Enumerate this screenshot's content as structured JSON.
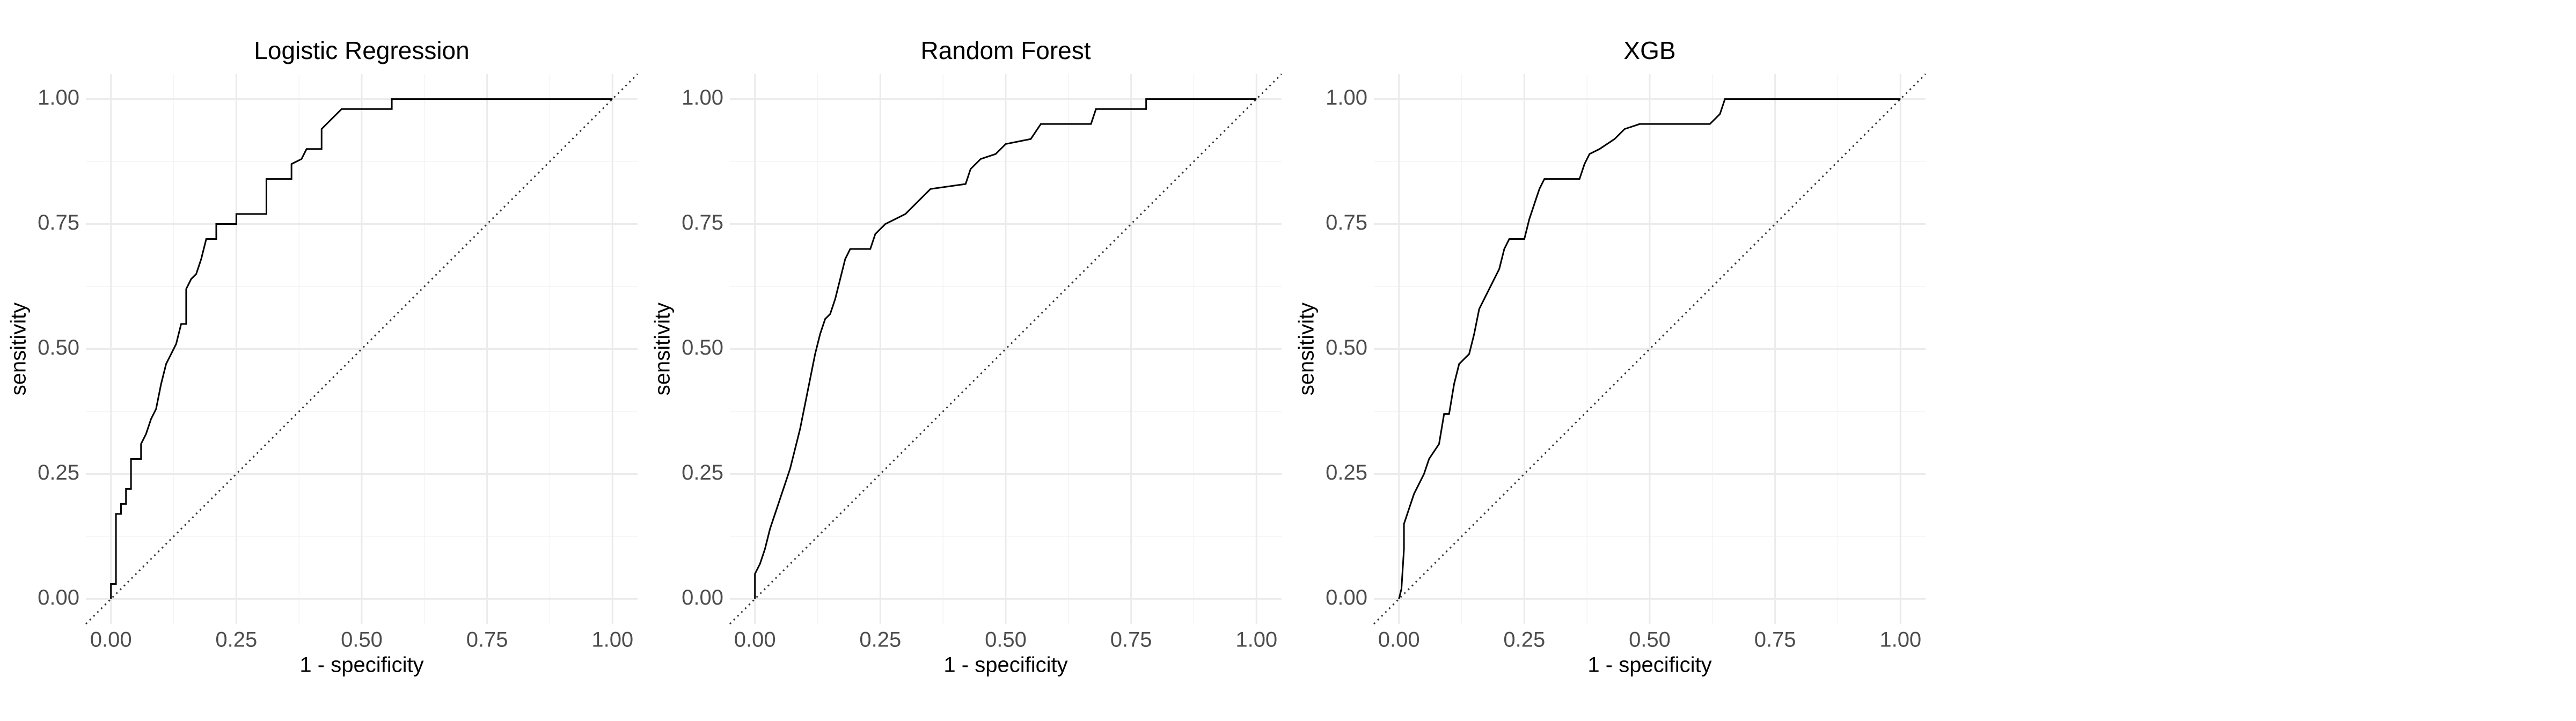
{
  "chart_data": [
    {
      "type": "line",
      "title": "Logistic Regression",
      "x_label": "1 - specificity",
      "y_label": "sensitivity",
      "color": "#000000",
      "grid": true,
      "xlim": [
        -0.05,
        1.05
      ],
      "ylim": [
        -0.05,
        1.05
      ],
      "xticks": [
        {
          "value": 0,
          "label": "0.00"
        },
        {
          "value": 0.25,
          "label": "0.25"
        },
        {
          "value": 0.5,
          "label": "0.50"
        },
        {
          "value": 0.75,
          "label": "0.75"
        },
        {
          "value": 1,
          "label": "1.00"
        }
      ],
      "yticks": [
        {
          "value": 0,
          "label": "0.00"
        },
        {
          "value": 0.25,
          "label": "0.25"
        },
        {
          "value": 0.5,
          "label": "0.50"
        },
        {
          "value": 0.75,
          "label": "0.75"
        },
        {
          "value": 1,
          "label": "1.00"
        }
      ],
      "x": [
        0,
        0,
        0.01,
        0.01,
        0.02,
        0.02,
        0.03,
        0.03,
        0.04,
        0.04,
        0.06,
        0.06,
        0.07,
        0.08,
        0.09,
        0.1,
        0.11,
        0.12,
        0.13,
        0.14,
        0.15,
        0.15,
        0.16,
        0.17,
        0.18,
        0.19,
        0.21,
        0.21,
        0.25,
        0.25,
        0.31,
        0.31,
        0.36,
        0.36,
        0.38,
        0.39,
        0.42,
        0.42,
        0.44,
        0.46,
        0.56,
        0.56,
        1
      ],
      "values": [
        0,
        0.03,
        0.03,
        0.17,
        0.17,
        0.19,
        0.19,
        0.22,
        0.22,
        0.28,
        0.28,
        0.31,
        0.33,
        0.36,
        0.38,
        0.43,
        0.47,
        0.49,
        0.51,
        0.55,
        0.55,
        0.62,
        0.64,
        0.65,
        0.68,
        0.72,
        0.72,
        0.75,
        0.75,
        0.77,
        0.77,
        0.84,
        0.84,
        0.87,
        0.88,
        0.9,
        0.9,
        0.94,
        0.96,
        0.98,
        0.98,
        1,
        1
      ]
    },
    {
      "type": "line",
      "title": "Random Forest",
      "x_label": "1 - specificity",
      "y_label": "sensitivity",
      "color": "#000000",
      "grid": true,
      "xlim": [
        -0.05,
        1.05
      ],
      "ylim": [
        -0.05,
        1.05
      ],
      "xticks": [
        {
          "value": 0,
          "label": "0.00"
        },
        {
          "value": 0.25,
          "label": "0.25"
        },
        {
          "value": 0.5,
          "label": "0.50"
        },
        {
          "value": 0.75,
          "label": "0.75"
        },
        {
          "value": 1,
          "label": "1.00"
        }
      ],
      "yticks": [
        {
          "value": 0,
          "label": "0.00"
        },
        {
          "value": 0.25,
          "label": "0.25"
        },
        {
          "value": 0.5,
          "label": "0.50"
        },
        {
          "value": 0.75,
          "label": "0.75"
        },
        {
          "value": 1,
          "label": "1.00"
        }
      ],
      "x": [
        0,
        0,
        0.01,
        0.02,
        0.03,
        0.04,
        0.05,
        0.06,
        0.07,
        0.08,
        0.09,
        0.1,
        0.11,
        0.12,
        0.13,
        0.14,
        0.15,
        0.16,
        0.17,
        0.18,
        0.19,
        0.23,
        0.24,
        0.26,
        0.3,
        0.33,
        0.35,
        0.42,
        0.43,
        0.45,
        0.48,
        0.5,
        0.55,
        0.57,
        0.67,
        0.68,
        0.78,
        0.78,
        1
      ],
      "values": [
        0,
        0.05,
        0.07,
        0.1,
        0.14,
        0.17,
        0.2,
        0.23,
        0.26,
        0.3,
        0.34,
        0.39,
        0.44,
        0.49,
        0.53,
        0.56,
        0.57,
        0.6,
        0.64,
        0.68,
        0.7,
        0.7,
        0.73,
        0.75,
        0.77,
        0.8,
        0.82,
        0.83,
        0.86,
        0.88,
        0.89,
        0.91,
        0.92,
        0.95,
        0.95,
        0.98,
        0.98,
        1,
        1
      ]
    },
    {
      "type": "line",
      "title": "XGB",
      "x_label": "1 - specificity",
      "y_label": "sensitivity",
      "color": "#000000",
      "grid": true,
      "xlim": [
        -0.05,
        1.05
      ],
      "ylim": [
        -0.05,
        1.05
      ],
      "xticks": [
        {
          "value": 0,
          "label": "0.00"
        },
        {
          "value": 0.25,
          "label": "0.25"
        },
        {
          "value": 0.5,
          "label": "0.50"
        },
        {
          "value": 0.75,
          "label": "0.75"
        },
        {
          "value": 1,
          "label": "1.00"
        }
      ],
      "yticks": [
        {
          "value": 0,
          "label": "0.00"
        },
        {
          "value": 0.25,
          "label": "0.25"
        },
        {
          "value": 0.5,
          "label": "0.50"
        },
        {
          "value": 0.75,
          "label": "0.75"
        },
        {
          "value": 1,
          "label": "1.00"
        }
      ],
      "x": [
        0,
        0.005,
        0.01,
        0.01,
        0.02,
        0.03,
        0.04,
        0.05,
        0.06,
        0.08,
        0.09,
        0.1,
        0.11,
        0.12,
        0.14,
        0.15,
        0.16,
        0.18,
        0.2,
        0.21,
        0.22,
        0.25,
        0.26,
        0.27,
        0.28,
        0.29,
        0.36,
        0.37,
        0.38,
        0.4,
        0.43,
        0.45,
        0.48,
        0.62,
        0.64,
        0.65,
        1
      ],
      "values": [
        0,
        0.02,
        0.1,
        0.15,
        0.18,
        0.21,
        0.23,
        0.25,
        0.28,
        0.31,
        0.37,
        0.37,
        0.43,
        0.47,
        0.49,
        0.53,
        0.58,
        0.62,
        0.66,
        0.7,
        0.72,
        0.72,
        0.76,
        0.79,
        0.82,
        0.84,
        0.84,
        0.87,
        0.89,
        0.9,
        0.92,
        0.94,
        0.95,
        0.95,
        0.97,
        1,
        1
      ]
    }
  ]
}
